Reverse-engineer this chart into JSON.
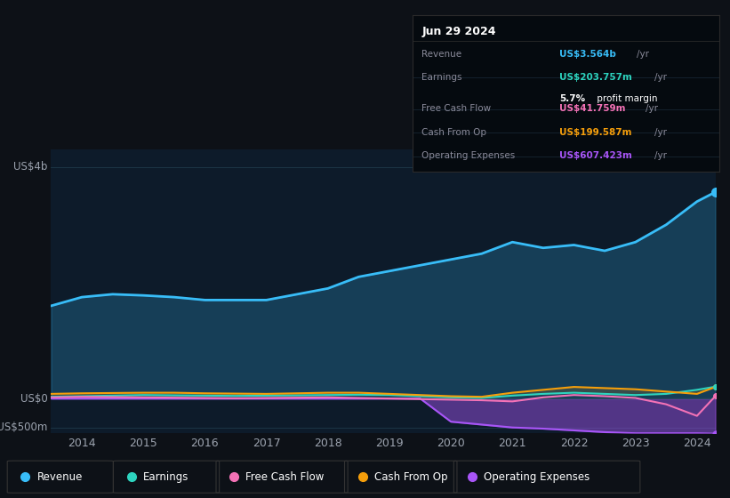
{
  "bg_color": "#0d1117",
  "chart_bg": "#0d1b2a",
  "years": [
    2013.5,
    2014,
    2014.5,
    2015,
    2015.5,
    2016,
    2016.5,
    2017,
    2017.5,
    2018,
    2018.5,
    2019,
    2019.5,
    2020,
    2020.5,
    2021,
    2021.5,
    2022,
    2022.5,
    2023,
    2023.5,
    2024,
    2024.3
  ],
  "revenue": [
    1600,
    1750,
    1800,
    1780,
    1750,
    1700,
    1700,
    1700,
    1800,
    1900,
    2100,
    2200,
    2300,
    2400,
    2500,
    2700,
    2600,
    2650,
    2550,
    2700,
    3000,
    3400,
    3564
  ],
  "earnings": [
    30,
    40,
    50,
    60,
    55,
    50,
    45,
    50,
    55,
    60,
    65,
    60,
    40,
    20,
    10,
    50,
    80,
    100,
    80,
    60,
    80,
    150,
    204
  ],
  "free_cash_flow": [
    20,
    30,
    25,
    20,
    15,
    10,
    5,
    10,
    15,
    20,
    10,
    0,
    -10,
    -20,
    -30,
    -50,
    20,
    60,
    40,
    10,
    -100,
    -300,
    42
  ],
  "cash_from_op": [
    80,
    90,
    95,
    100,
    100,
    90,
    85,
    80,
    90,
    100,
    100,
    80,
    60,
    40,
    30,
    100,
    150,
    200,
    180,
    160,
    120,
    80,
    200
  ],
  "operating_expenses": [
    0,
    0,
    0,
    0,
    0,
    0,
    0,
    0,
    0,
    0,
    0,
    0,
    0,
    -400,
    -450,
    -500,
    -520,
    -550,
    -580,
    -600,
    -600,
    -600,
    -607
  ],
  "revenue_color": "#38bdf8",
  "earnings_color": "#2dd4bf",
  "fcf_color": "#f472b6",
  "cfop_color": "#f59e0b",
  "opex_color": "#a855f7",
  "grid_color": "#1e3a4a",
  "text_color": "#9ca3af",
  "tooltip": {
    "date": "Jun 29 2024",
    "revenue_label": "Revenue",
    "revenue_value": "US$3.564b",
    "revenue_unit": "/yr",
    "earnings_label": "Earnings",
    "earnings_value": "US$203.757m",
    "earnings_unit": "/yr",
    "margin_bold": "5.7%",
    "margin_text": " profit margin",
    "fcf_label": "Free Cash Flow",
    "fcf_value": "US$41.759m",
    "fcf_unit": "/yr",
    "cfop_label": "Cash From Op",
    "cfop_value": "US$199.587m",
    "cfop_unit": "/yr",
    "opex_label": "Operating Expenses",
    "opex_value": "US$607.423m",
    "opex_unit": "/yr"
  },
  "legend_items": [
    {
      "label": "Revenue",
      "color": "#38bdf8"
    },
    {
      "label": "Earnings",
      "color": "#2dd4bf"
    },
    {
      "label": "Free Cash Flow",
      "color": "#f472b6"
    },
    {
      "label": "Cash From Op",
      "color": "#f59e0b"
    },
    {
      "label": "Operating Expenses",
      "color": "#a855f7"
    }
  ]
}
